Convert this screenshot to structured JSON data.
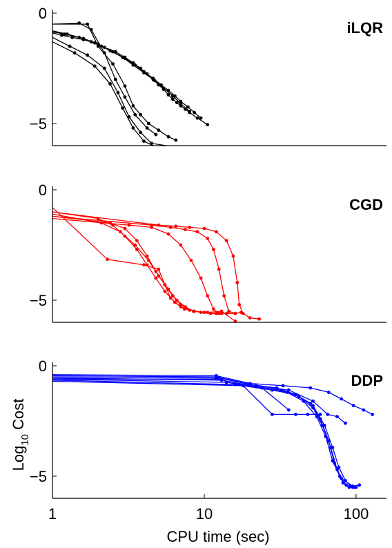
{
  "chart_data": [
    {
      "type": "line",
      "title": "iLQR",
      "xscale": "log",
      "xlim": [
        1,
        150
      ],
      "ylim": [
        -6,
        0.3
      ],
      "yticks": [
        0,
        -5
      ],
      "ytick_labels": [
        "0",
        "−5"
      ],
      "color": "#000000",
      "series": [
        {
          "x": [
            1,
            1.15,
            1.35,
            1.6,
            1.9,
            2.2,
            2.6,
            3.0,
            3.4,
            3.8,
            4.2,
            4.6,
            5.0,
            5.4,
            5.8,
            6.2,
            6.6,
            7.0,
            7.5,
            8.0,
            9.0,
            10.5
          ],
          "y": [
            -0.9,
            -1.0,
            -1.1,
            -1.2,
            -1.35,
            -1.55,
            -1.75,
            -2.0,
            -2.25,
            -2.5,
            -2.75,
            -3.0,
            -3.25,
            -3.45,
            -3.7,
            -3.9,
            -4.05,
            -4.2,
            -4.35,
            -4.5,
            -4.75,
            -5.05
          ]
        },
        {
          "x": [
            1,
            1.2,
            1.5,
            1.8,
            2.1,
            2.5,
            3.0,
            3.5,
            4.0,
            4.6,
            5.2,
            5.8,
            6.4,
            7.0,
            7.8,
            8.6,
            9.5
          ],
          "y": [
            -0.85,
            -0.95,
            -1.1,
            -1.3,
            -1.5,
            -1.75,
            -2.05,
            -2.35,
            -2.65,
            -2.95,
            -3.25,
            -3.5,
            -3.75,
            -4.0,
            -4.25,
            -4.5,
            -4.75
          ]
        },
        {
          "x": [
            1,
            1.25,
            1.6,
            2.0,
            2.4,
            2.9,
            3.4,
            4.0,
            4.7,
            5.4,
            6.2,
            7.0,
            8.0
          ],
          "y": [
            -0.8,
            -0.95,
            -1.15,
            -1.4,
            -1.7,
            -2.0,
            -2.35,
            -2.7,
            -3.05,
            -3.4,
            -3.75,
            -4.1,
            -4.45
          ]
        },
        {
          "x": [
            1,
            1.7,
            2.0,
            2.5,
            3.0,
            3.4,
            3.8,
            4.3,
            5.0,
            5.8,
            6.5
          ],
          "y": [
            -0.5,
            -0.5,
            -1.5,
            -2.3,
            -3.3,
            -4.2,
            -4.6,
            -5.0,
            -5.3,
            -5.6,
            -5.75
          ]
        },
        {
          "x": [
            1,
            1.5,
            1.8,
            2.2,
            2.6,
            3.0,
            3.5,
            4.2,
            4.8
          ],
          "y": [
            -0.5,
            -0.45,
            -0.75,
            -1.8,
            -3.0,
            -3.8,
            -4.6,
            -5.2,
            -5.5
          ]
        },
        {
          "x": [
            1,
            1.3,
            1.7,
            2.2,
            2.7,
            3.2,
            3.8,
            4.5,
            5.6
          ],
          "y": [
            -1.1,
            -1.5,
            -1.9,
            -2.5,
            -3.6,
            -4.7,
            -5.4,
            -5.9,
            -6.0
          ]
        },
        {
          "x": [
            1,
            1.4,
            1.9,
            2.4,
            2.9,
            3.4,
            4.0,
            4.6
          ],
          "y": [
            -1.3,
            -1.8,
            -2.4,
            -3.2,
            -4.3,
            -5.2,
            -5.8,
            -6.0
          ]
        }
      ]
    },
    {
      "type": "line",
      "title": "CGD",
      "xscale": "log",
      "xlim": [
        1,
        150
      ],
      "ylim": [
        -6,
        0.3
      ],
      "yticks": [
        0,
        -5
      ],
      "ytick_labels": [
        "0",
        "−5"
      ],
      "color": "#ff0000",
      "series": [
        {
          "x": [
            1,
            5.0,
            6.5,
            8.0,
            10.0,
            12.0,
            14.0,
            15.5,
            16.5,
            17.0,
            18.0,
            20.0,
            23.0
          ],
          "y": [
            -1.0,
            -1.6,
            -1.65,
            -1.7,
            -1.75,
            -1.9,
            -2.3,
            -3.0,
            -4.2,
            -5.2,
            -5.6,
            -5.8,
            -5.85
          ]
        },
        {
          "x": [
            1,
            4.5,
            6.0,
            7.5,
            9.0,
            10.5,
            11.5,
            12.5,
            13.5,
            14.5,
            16.0,
            17.5
          ],
          "y": [
            -1.2,
            -1.6,
            -1.7,
            -1.8,
            -1.9,
            -2.2,
            -2.7,
            -3.6,
            -4.8,
            -5.5,
            -5.6,
            -5.55
          ]
        },
        {
          "x": [
            1,
            3.2,
            4.5,
            5.8,
            7.0,
            8.2,
            9.5,
            10.5,
            11.5,
            12.5,
            14.0,
            16.0
          ],
          "y": [
            -1.3,
            -1.6,
            -1.7,
            -2.0,
            -2.5,
            -3.2,
            -4.0,
            -4.8,
            -5.4,
            -5.6,
            -5.6,
            -5.6
          ]
        },
        {
          "x": [
            1,
            2.1,
            2.8,
            3.5,
            4.3,
            5.0,
            5.8,
            6.6,
            7.5,
            8.5,
            10.0,
            12.0
          ],
          "y": [
            -1.1,
            -1.5,
            -1.9,
            -2.5,
            -3.2,
            -3.9,
            -4.5,
            -5.0,
            -5.3,
            -5.5,
            -5.55,
            -5.6
          ]
        },
        {
          "x": [
            1,
            2.4,
            3.0,
            3.6,
            4.2,
            4.8,
            5.5,
            6.2,
            7.0,
            8.0,
            9.5,
            11.0,
            13.0
          ],
          "y": [
            -1.2,
            -1.5,
            -1.75,
            -2.3,
            -3.0,
            -3.7,
            -4.3,
            -4.8,
            -5.2,
            -5.45,
            -5.55,
            -5.6,
            -5.6
          ]
        },
        {
          "x": [
            1,
            2.0,
            2.5,
            3.0,
            3.6,
            4.2,
            4.8,
            5.5,
            6.4,
            7.4,
            8.6,
            10.0
          ],
          "y": [
            -1.0,
            -1.3,
            -1.6,
            -2.1,
            -2.7,
            -3.4,
            -4.0,
            -4.6,
            -5.1,
            -5.4,
            -5.5,
            -5.55
          ]
        },
        {
          "x": [
            1,
            2.3,
            4.0,
            5.0,
            5.5,
            6.0,
            7.0,
            8.5,
            10.5,
            13.0,
            16.0
          ],
          "y": [
            -0.8,
            -3.15,
            -3.4,
            -3.6,
            -4.3,
            -4.9,
            -5.3,
            -5.5,
            -5.55,
            -5.5,
            -5.95
          ]
        }
      ]
    },
    {
      "type": "line",
      "title": "DDP",
      "xscale": "log",
      "xlim": [
        1,
        150
      ],
      "ylim": [
        -6,
        0.3
      ],
      "yticks": [
        0,
        -5
      ],
      "ytick_labels": [
        "0",
        "−5"
      ],
      "xticks": [
        1,
        10,
        100
      ],
      "xtick_labels": [
        "1",
        "10",
        "100"
      ],
      "xlabel": "CPU time (sec)",
      "ylabel": "Log",
      "ylabel_sub": "10",
      "ylabel_suffix": " Cost",
      "color": "#0000ff",
      "series": [
        {
          "x": [
            1,
            12,
            20,
            33,
            50,
            66,
            80,
            96,
            112,
            128
          ],
          "y": [
            -0.4,
            -0.45,
            -0.8,
            -0.9,
            -1.0,
            -1.2,
            -1.5,
            -1.8,
            -2.0,
            -2.2
          ]
        },
        {
          "x": [
            1,
            12,
            22,
            36,
            52,
            65,
            75,
            85
          ],
          "y": [
            -0.45,
            -0.5,
            -0.9,
            -1.1,
            -1.6,
            -2.2,
            -2.3,
            -2.6
          ]
        },
        {
          "x": [
            1,
            12.5,
            20,
            30,
            40,
            50,
            58,
            66,
            72,
            80,
            95,
            105
          ],
          "y": [
            -0.5,
            -0.55,
            -0.85,
            -1.0,
            -1.3,
            -1.7,
            -2.4,
            -3.4,
            -4.4,
            -5.1,
            -5.45,
            -5.4
          ]
        },
        {
          "x": [
            1,
            13,
            22,
            32,
            42,
            52,
            60,
            68,
            75,
            82,
            90,
            100
          ],
          "y": [
            -0.55,
            -0.65,
            -0.95,
            -1.1,
            -1.4,
            -1.9,
            -2.7,
            -3.7,
            -4.7,
            -5.3,
            -5.5,
            -5.5
          ]
        },
        {
          "x": [
            1,
            14,
            24,
            35,
            45,
            55,
            63,
            70,
            78,
            86,
            95
          ],
          "y": [
            -0.6,
            -0.75,
            -1.0,
            -1.2,
            -1.6,
            -2.3,
            -3.2,
            -4.3,
            -5.0,
            -5.4,
            -5.5
          ]
        },
        {
          "x": [
            1,
            16,
            28,
            40,
            52,
            62,
            70,
            77,
            85,
            92,
            98
          ],
          "y": [
            -0.65,
            -0.85,
            -1.1,
            -1.3,
            -1.8,
            -2.7,
            -3.7,
            -4.6,
            -5.2,
            -5.45,
            -5.5
          ]
        },
        {
          "x": [
            1,
            18,
            28,
            40,
            48,
            58
          ],
          "y": [
            -0.7,
            -0.9,
            -2.2,
            -2.2,
            -2.2,
            -2.2
          ]
        },
        {
          "x": [
            1,
            12,
            24,
            36
          ],
          "y": [
            -0.6,
            -0.6,
            -1.0,
            -2.0
          ]
        }
      ]
    }
  ]
}
